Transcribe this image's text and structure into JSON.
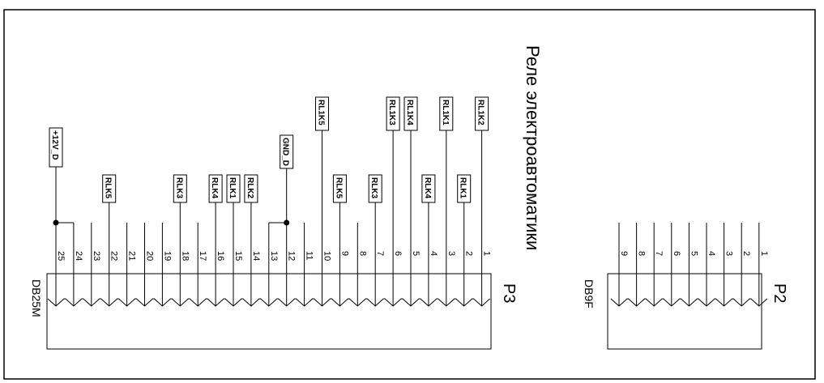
{
  "title": "Реле электроавтоматики",
  "connectors": [
    {
      "ref": "P3",
      "model": "DB25M",
      "pins": [
        {
          "num": "25",
          "net": "+12V_D",
          "dot": true
        },
        {
          "num": "24",
          "net": "+12V_D",
          "dot": false
        },
        {
          "num": "23",
          "net": "",
          "dot": false
        },
        {
          "num": "22",
          "net": "RLK5",
          "dot": false
        },
        {
          "num": "21",
          "net": "",
          "dot": false
        },
        {
          "num": "20",
          "net": "",
          "dot": false
        },
        {
          "num": "19",
          "net": "",
          "dot": false
        },
        {
          "num": "18",
          "net": "RLK3",
          "dot": false
        },
        {
          "num": "17",
          "net": "",
          "dot": false
        },
        {
          "num": "16",
          "net": "RLK4",
          "dot": false
        },
        {
          "num": "15",
          "net": "RLK1",
          "dot": false
        },
        {
          "num": "14",
          "net": "RLK2",
          "dot": false
        },
        {
          "num": "13",
          "net": "GND_D",
          "dot": false
        },
        {
          "num": "12",
          "net": "GND_D",
          "dot": true
        },
        {
          "num": "11",
          "net": "",
          "dot": false
        },
        {
          "num": "10",
          "net": "RL1K5",
          "dot": false
        },
        {
          "num": "9",
          "net": "RLK5",
          "dot": false
        },
        {
          "num": "8",
          "net": "",
          "dot": false
        },
        {
          "num": "7",
          "net": "RLK3",
          "dot": false
        },
        {
          "num": "6",
          "net": "RL1K3",
          "dot": false
        },
        {
          "num": "5",
          "net": "RL1K4",
          "dot": false
        },
        {
          "num": "4",
          "net": "RLK4",
          "dot": false
        },
        {
          "num": "3",
          "net": "RL1K1",
          "dot": false
        },
        {
          "num": "2",
          "net": "RLK1",
          "dot": false
        },
        {
          "num": "1",
          "net": "RL1K2",
          "dot": false
        }
      ]
    },
    {
      "ref": "P2",
      "model": "DB9F",
      "pins": [
        {
          "num": "9",
          "net": "",
          "dot": false
        },
        {
          "num": "8",
          "net": "",
          "dot": false
        },
        {
          "num": "7",
          "net": "",
          "dot": false
        },
        {
          "num": "6",
          "net": "",
          "dot": false
        },
        {
          "num": "5",
          "net": "",
          "dot": false
        },
        {
          "num": "4",
          "net": "",
          "dot": false
        },
        {
          "num": "3",
          "net": "",
          "dot": false
        },
        {
          "num": "2",
          "net": "",
          "dot": false
        },
        {
          "num": "1",
          "net": "",
          "dot": false
        }
      ]
    }
  ],
  "net_labels": [
    {
      "text": "+12V_D",
      "pin": "25"
    },
    {
      "text": "RLK5",
      "pin": "22"
    },
    {
      "text": "RLK3",
      "pin": "18"
    },
    {
      "text": "RLK4",
      "pin": "16"
    },
    {
      "text": "RLK1",
      "pin": "15"
    },
    {
      "text": "RLK2",
      "pin": "14"
    },
    {
      "text": "GND_D",
      "pin": "12"
    },
    {
      "text": "RL1K5",
      "pin": "10"
    },
    {
      "text": "RLK5",
      "pin": "9"
    },
    {
      "text": "RL1K3",
      "pin": "6"
    },
    {
      "text": "RLK3",
      "pin": "7"
    },
    {
      "text": "RL1K4",
      "pin": "5"
    },
    {
      "text": "RLK4",
      "pin": "4"
    },
    {
      "text": "RL1K1",
      "pin": "3"
    },
    {
      "text": "RLK1",
      "pin": "2"
    },
    {
      "text": "RL1K2",
      "pin": "1"
    }
  ]
}
